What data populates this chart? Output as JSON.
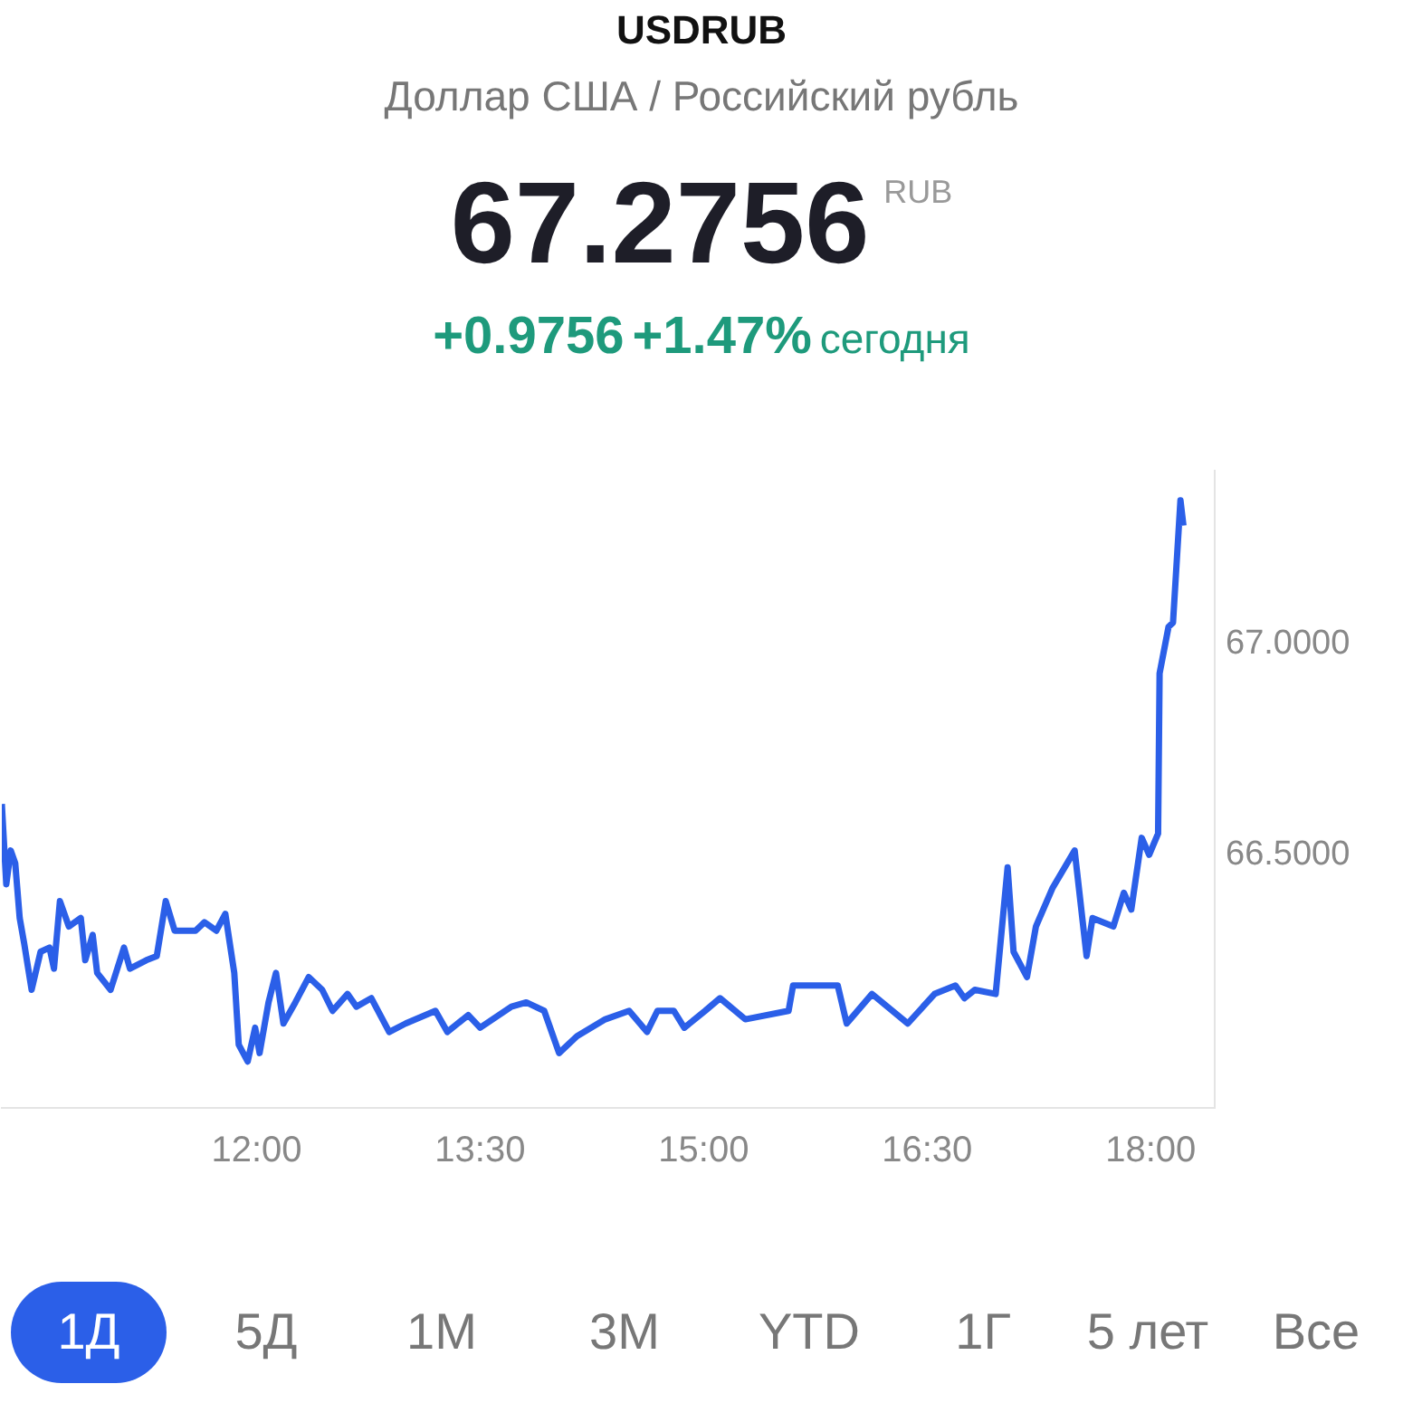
{
  "chart_data": {
    "type": "line",
    "title": "USDRUB",
    "subtitle": "Доллар США / Российский рубль",
    "annotations": [
      "67.2756",
      "RUB",
      "+0.9756",
      "+1.47%",
      "сегодня",
      "1Д",
      "5Д",
      "1М",
      "3М",
      "YTD",
      "1Г",
      "5 лет",
      "Все"
    ],
    "x": [
      10.29,
      10.32,
      10.35,
      10.38,
      10.41,
      10.44,
      10.49,
      10.55,
      10.61,
      10.64,
      10.68,
      10.74,
      10.82,
      10.85,
      10.9,
      10.93,
      11.02,
      11.11,
      11.15,
      11.26,
      11.33,
      11.39,
      11.45,
      11.59,
      11.65,
      11.73,
      11.79,
      11.85,
      11.88,
      11.94,
      11.99,
      12.02,
      12.08,
      12.13,
      12.18,
      12.26,
      12.35,
      12.44,
      12.51,
      12.61,
      12.67,
      12.77,
      12.89,
      13.0,
      13.2,
      13.28,
      13.42,
      13.5,
      13.71,
      13.81,
      13.93,
      14.03,
      14.15,
      14.34,
      14.5,
      14.62,
      14.69,
      14.8,
      14.87,
      15.01,
      15.11,
      15.28,
      15.57,
      15.6,
      15.8,
      15.9,
      15.96,
      16.13,
      16.37,
      16.55,
      16.69,
      16.75,
      16.82,
      16.96,
      17.04,
      17.08,
      17.17,
      17.23,
      17.34,
      17.49,
      17.57,
      17.61,
      17.75,
      17.82,
      17.87,
      17.94,
      17.99,
      18.05,
      18.06,
      18.12,
      18.15,
      18.2,
      18.22
    ],
    "series": [
      {
        "color": "#2b5fe8",
        "values": [
          66.62,
          66.43,
          66.51,
          66.48,
          66.35,
          66.29,
          66.18,
          66.27,
          66.28,
          66.23,
          66.39,
          66.33,
          66.35,
          66.25,
          66.31,
          66.22,
          66.18,
          66.28,
          66.23,
          66.25,
          66.26,
          66.39,
          66.32,
          66.32,
          66.34,
          66.32,
          66.36,
          66.22,
          66.05,
          66.01,
          66.09,
          66.03,
          66.15,
          66.22,
          66.1,
          66.15,
          66.21,
          66.18,
          66.13,
          66.17,
          66.14,
          66.16,
          66.08,
          66.1,
          66.13,
          66.08,
          66.12,
          66.09,
          66.14,
          66.15,
          66.13,
          66.03,
          66.07,
          66.11,
          66.13,
          66.08,
          66.13,
          66.13,
          66.09,
          66.13,
          66.16,
          66.11,
          66.13,
          66.19,
          66.19,
          66.19,
          66.1,
          66.17,
          66.1,
          66.17,
          66.19,
          66.16,
          66.18,
          66.17,
          66.47,
          66.27,
          66.21,
          66.33,
          66.42,
          66.51,
          66.26,
          66.35,
          66.33,
          66.41,
          66.37,
          66.54,
          66.5,
          66.55,
          66.93,
          67.04,
          67.05,
          67.34,
          67.28
        ]
      }
    ],
    "xlim": [
      10.29,
      18.43
    ],
    "ylim": [
      65.9,
      67.41
    ],
    "xticks": [
      {
        "value": 12,
        "label": "12:00"
      },
      {
        "value": 13.5,
        "label": "13:30"
      },
      {
        "value": 15,
        "label": "15:00"
      },
      {
        "value": 16.5,
        "label": "16:30"
      },
      {
        "value": 18,
        "label": "18:00"
      }
    ],
    "yticks": [
      {
        "value": 67,
        "label": "67.0000"
      },
      {
        "value": 66.5,
        "label": "66.5000"
      }
    ],
    "grid": false,
    "legend": false
  }
}
